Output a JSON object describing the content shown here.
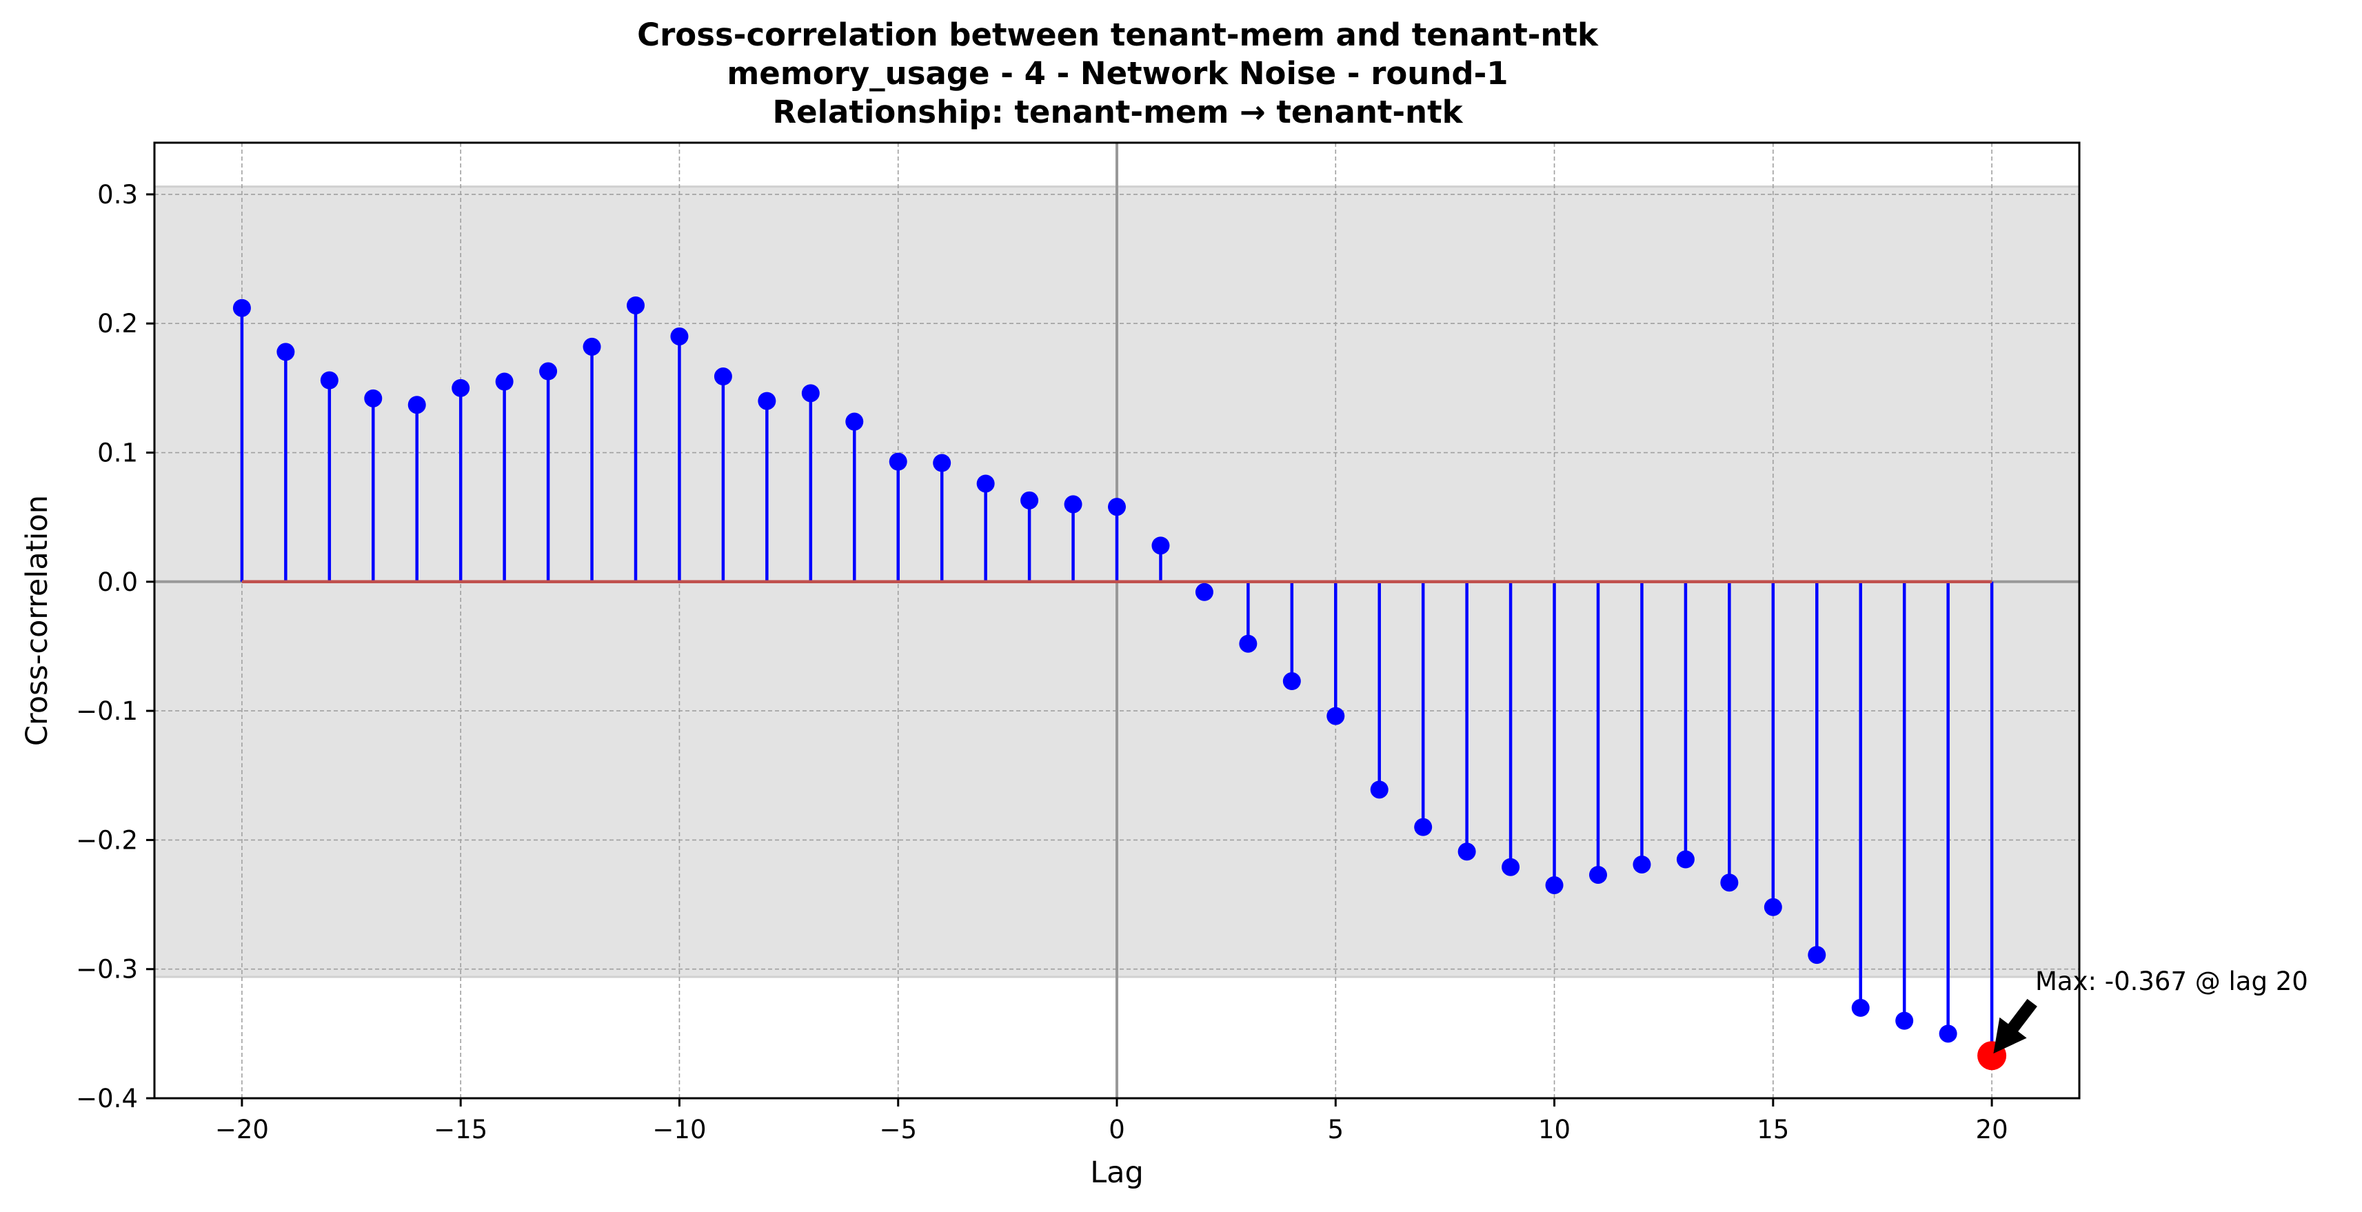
{
  "chart_data": {
    "type": "stem",
    "title_lines": [
      "Cross-correlation between tenant-mem and tenant-ntk",
      "memory_usage - 4 - Network Noise - round-1",
      "Relationship: tenant-mem → tenant-ntk"
    ],
    "xlabel": "Lag",
    "ylabel": "Cross-correlation",
    "xlim": [
      -22,
      22
    ],
    "ylim": [
      -0.4,
      0.34
    ],
    "xticks": [
      -20,
      -15,
      -10,
      -5,
      0,
      5,
      10,
      15,
      20
    ],
    "xtick_labels": [
      "−20",
      "−15",
      "−10",
      "−5",
      "0",
      "5",
      "10",
      "15",
      "20"
    ],
    "yticks": [
      -0.4,
      -0.3,
      -0.2,
      -0.1,
      0.0,
      0.1,
      0.2,
      0.3
    ],
    "ytick_labels": [
      "−0.4",
      "−0.3",
      "−0.2",
      "−0.1",
      "0.0",
      "0.1",
      "0.2",
      "0.3"
    ],
    "grid": true,
    "significance_band": [
      -0.306,
      0.306
    ],
    "x": [
      -20,
      -19,
      -18,
      -17,
      -16,
      -15,
      -14,
      -13,
      -12,
      -11,
      -10,
      -9,
      -8,
      -7,
      -6,
      -5,
      -4,
      -3,
      -2,
      -1,
      0,
      1,
      2,
      3,
      4,
      5,
      6,
      7,
      8,
      9,
      10,
      11,
      12,
      13,
      14,
      15,
      16,
      17,
      18,
      19,
      20
    ],
    "values": [
      0.212,
      0.178,
      0.156,
      0.142,
      0.137,
      0.15,
      0.155,
      0.163,
      0.182,
      0.214,
      0.19,
      0.159,
      0.14,
      0.146,
      0.124,
      0.093,
      0.092,
      0.076,
      0.063,
      0.06,
      0.058,
      0.028,
      -0.008,
      -0.048,
      -0.077,
      -0.104,
      -0.161,
      -0.19,
      -0.209,
      -0.221,
      -0.235,
      -0.227,
      -0.219,
      -0.215,
      -0.233,
      -0.252,
      -0.289,
      -0.33,
      -0.34,
      -0.35,
      -0.367
    ],
    "max_point": {
      "lag": 20,
      "value": -0.367
    },
    "annotation": "Max: -0.367 @ lag 20",
    "colors": {
      "stem": "#0000ff",
      "marker": "#0000ff",
      "baseline": "#c0504d",
      "max_marker": "#ff0000",
      "band": "#e3e3e3",
      "grid": "#a0a0a0",
      "zero_line": "#999999"
    }
  }
}
